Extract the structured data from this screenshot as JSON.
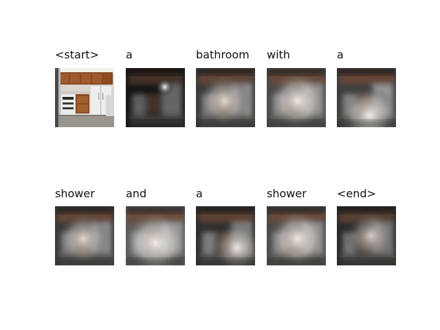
{
  "caption_tokens": [
    "<start>",
    "a",
    "bathroom",
    "with",
    "a",
    "shower",
    "and",
    "a",
    "shower",
    "<end>"
  ],
  "frames": [
    {
      "kind": "photo"
    },
    {
      "kind": "attention",
      "spot": "glow-right"
    },
    {
      "kind": "attention",
      "spot": "soft-center"
    },
    {
      "kind": "attention",
      "spot": "bright-center"
    },
    {
      "kind": "attention",
      "spot": "bright-bottom"
    },
    {
      "kind": "attention",
      "spot": "soft-center"
    },
    {
      "kind": "attention",
      "spot": "bright-lower"
    },
    {
      "kind": "attention",
      "spot": "right-lower"
    },
    {
      "kind": "attention",
      "spot": "bright-center"
    },
    {
      "kind": "attention",
      "spot": "dark-left"
    }
  ],
  "colors": {
    "background": "#ffffff",
    "text": "#111111",
    "cabinet_wood": "#8a4a23",
    "appliance_white": "#e8e8ea",
    "wall": "#d9d6cf",
    "floor": "#9a968f"
  }
}
